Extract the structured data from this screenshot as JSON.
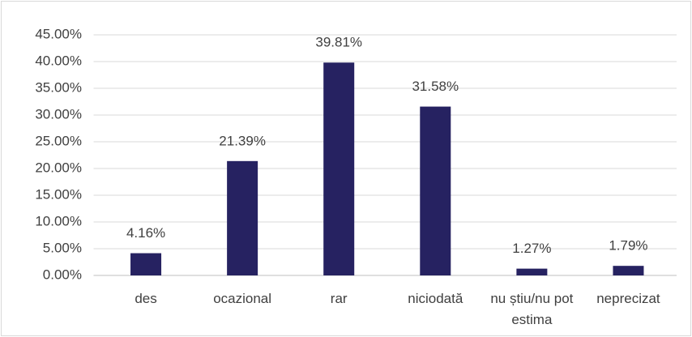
{
  "chart_data": {
    "type": "bar",
    "categories": [
      "des",
      "ocazional",
      "rar",
      "niciodată",
      "nu știu/nu pot estima",
      "neprecizat"
    ],
    "values": [
      4.16,
      21.39,
      39.81,
      31.58,
      1.27,
      1.79
    ],
    "value_labels": [
      "4.16%",
      "21.39%",
      "39.81%",
      "31.58%",
      "1.27%",
      "1.79%"
    ],
    "color": "#262261",
    "ylim": [
      0,
      45
    ],
    "yticks": [
      {
        "value": 0,
        "label": "0.00%"
      },
      {
        "value": 5,
        "label": "5.00%"
      },
      {
        "value": 10,
        "label": "10.00%"
      },
      {
        "value": 15,
        "label": "15.00%"
      },
      {
        "value": 20,
        "label": "20.00%"
      },
      {
        "value": 25,
        "label": "25.00%"
      },
      {
        "value": 30,
        "label": "30.00%"
      },
      {
        "value": 35,
        "label": "35.00%"
      },
      {
        "value": 40,
        "label": "40.00%"
      },
      {
        "value": 45,
        "label": "45.00%"
      }
    ],
    "grid": true
  }
}
